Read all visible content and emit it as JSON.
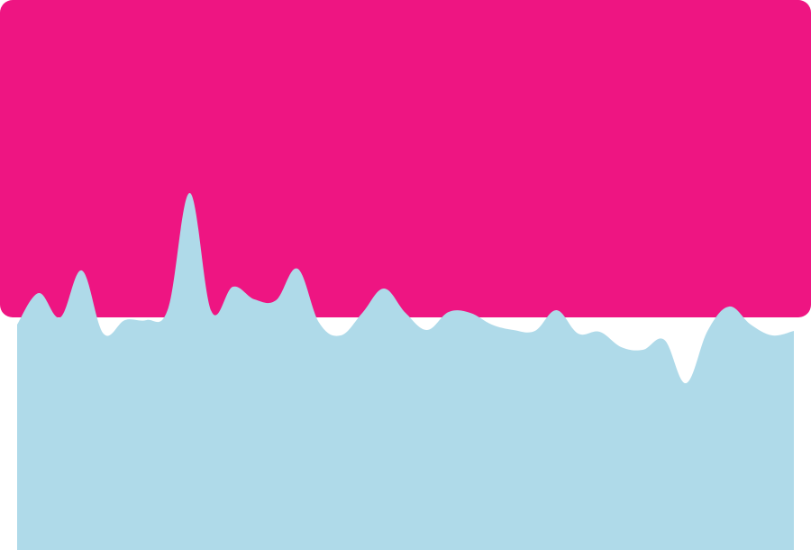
{
  "chart_data": {
    "type": "area",
    "title": "",
    "xlabel": "",
    "ylabel": "",
    "grid": false,
    "legend": "none",
    "ylim": [
      0,
      610
    ],
    "colors": {
      "background": "#ffffff",
      "upper_area": "#ee1582",
      "lower_area": "#afdae9"
    },
    "series": [
      {
        "color": "#afdae9",
        "x": [
          0,
          1,
          2,
          3,
          4,
          5,
          6,
          7,
          8,
          9,
          10,
          11,
          12,
          13,
          14,
          15,
          16,
          17,
          18,
          19,
          20,
          21,
          22,
          23,
          24,
          25,
          26,
          27,
          28,
          29,
          30,
          31,
          32,
          33,
          34,
          35,
          36
        ],
        "values": [
          250,
          285,
          258,
          310,
          240,
          255,
          255,
          268,
          396,
          265,
          292,
          278,
          277,
          312,
          252,
          238,
          263,
          290,
          263,
          244,
          264,
          263,
          250,
          244,
          243,
          266,
          240,
          242,
          225,
          222,
          233,
          185,
          243,
          270,
          250,
          238,
          243
        ]
      }
    ]
  }
}
